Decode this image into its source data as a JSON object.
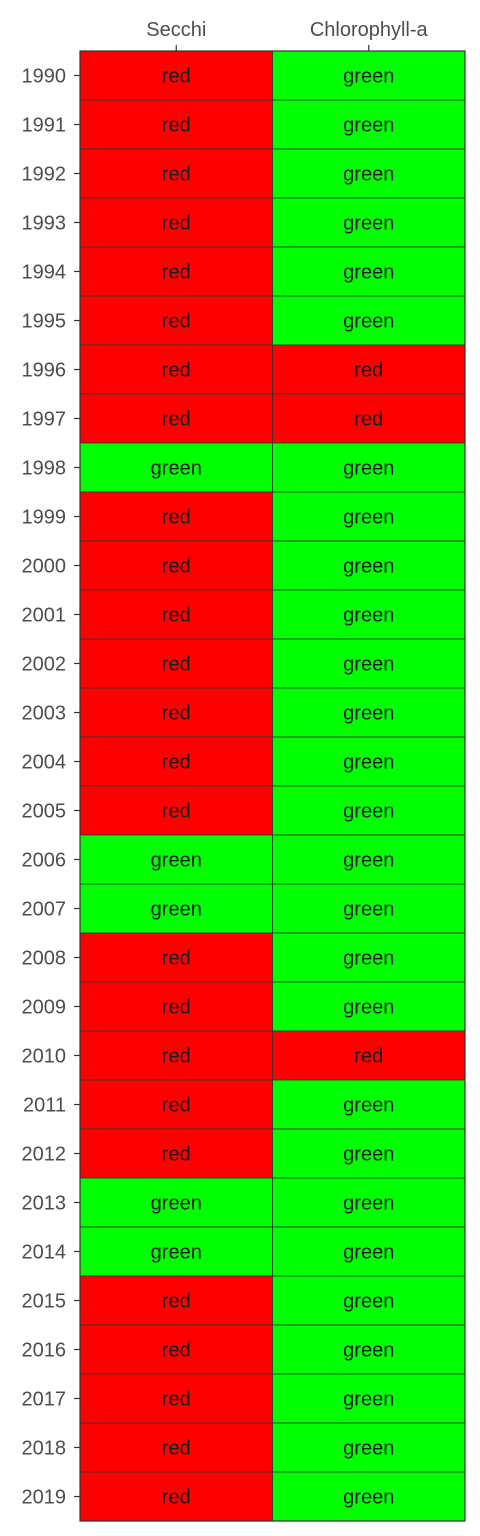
{
  "chart_data": {
    "type": "heatmap",
    "columns": [
      "Secchi",
      "Chlorophyll-a"
    ],
    "rows": [
      "1990",
      "1991",
      "1992",
      "1993",
      "1994",
      "1995",
      "1996",
      "1997",
      "1998",
      "1999",
      "2000",
      "2001",
      "2002",
      "2003",
      "2004",
      "2005",
      "2006",
      "2007",
      "2008",
      "2009",
      "2010",
      "2011",
      "2012",
      "2013",
      "2014",
      "2015",
      "2016",
      "2017",
      "2018",
      "2019"
    ],
    "values": [
      [
        "red",
        "green"
      ],
      [
        "red",
        "green"
      ],
      [
        "red",
        "green"
      ],
      [
        "red",
        "green"
      ],
      [
        "red",
        "green"
      ],
      [
        "red",
        "green"
      ],
      [
        "red",
        "red"
      ],
      [
        "red",
        "red"
      ],
      [
        "green",
        "green"
      ],
      [
        "red",
        "green"
      ],
      [
        "red",
        "green"
      ],
      [
        "red",
        "green"
      ],
      [
        "red",
        "green"
      ],
      [
        "red",
        "green"
      ],
      [
        "red",
        "green"
      ],
      [
        "red",
        "green"
      ],
      [
        "green",
        "green"
      ],
      [
        "green",
        "green"
      ],
      [
        "red",
        "green"
      ],
      [
        "red",
        "green"
      ],
      [
        "red",
        "red"
      ],
      [
        "red",
        "green"
      ],
      [
        "red",
        "green"
      ],
      [
        "green",
        "green"
      ],
      [
        "green",
        "green"
      ],
      [
        "red",
        "green"
      ],
      [
        "red",
        "green"
      ],
      [
        "red",
        "green"
      ],
      [
        "red",
        "green"
      ],
      [
        "red",
        "green"
      ]
    ],
    "colors": {
      "red": "#ff0000",
      "green": "#00ff00",
      "border": "#333333"
    },
    "xaxis_position": "top",
    "grid": false
  }
}
